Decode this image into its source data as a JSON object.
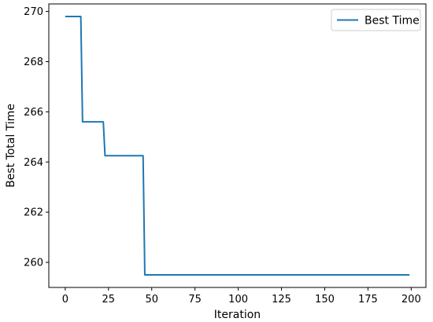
{
  "chart_data": {
    "type": "line",
    "title": "",
    "xlabel": "Iteration",
    "ylabel": "Best Total Time",
    "xlim": [
      -9.5,
      208.5
    ],
    "ylim": [
      259.0,
      270.3
    ],
    "xticks": [
      0,
      25,
      50,
      75,
      100,
      125,
      150,
      175,
      200
    ],
    "yticks": [
      260,
      262,
      264,
      266,
      268,
      270
    ],
    "grid": false,
    "legend_position": "top-right",
    "series": [
      {
        "name": "Best Time",
        "color": "#1f77b4",
        "x": [
          0,
          9,
          10,
          22,
          23,
          45,
          46,
          199
        ],
        "y": [
          269.8,
          269.8,
          265.6,
          265.6,
          264.25,
          264.25,
          259.5,
          259.5
        ]
      }
    ]
  }
}
